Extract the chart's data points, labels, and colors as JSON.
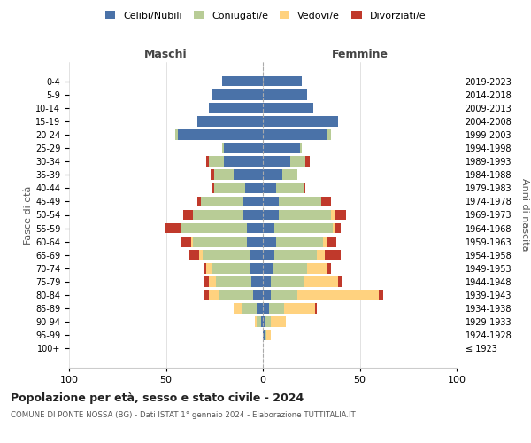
{
  "age_groups": [
    "100+",
    "95-99",
    "90-94",
    "85-89",
    "80-84",
    "75-79",
    "70-74",
    "65-69",
    "60-64",
    "55-59",
    "50-54",
    "45-49",
    "40-44",
    "35-39",
    "30-34",
    "25-29",
    "20-24",
    "15-19",
    "10-14",
    "5-9",
    "0-4"
  ],
  "birth_years": [
    "≤ 1923",
    "1924-1928",
    "1929-1933",
    "1934-1938",
    "1939-1943",
    "1944-1948",
    "1949-1953",
    "1954-1958",
    "1959-1963",
    "1964-1968",
    "1969-1973",
    "1974-1978",
    "1979-1983",
    "1984-1988",
    "1989-1993",
    "1994-1998",
    "1999-2003",
    "2004-2008",
    "2009-2013",
    "2014-2018",
    "2019-2023"
  ],
  "maschi": {
    "celibi": [
      0,
      0,
      1,
      3,
      5,
      6,
      7,
      7,
      8,
      8,
      10,
      10,
      9,
      15,
      20,
      20,
      44,
      34,
      28,
      26,
      21
    ],
    "coniugati": [
      0,
      0,
      2,
      8,
      18,
      18,
      19,
      24,
      28,
      34,
      26,
      22,
      16,
      10,
      8,
      1,
      1,
      0,
      0,
      0,
      0
    ],
    "vedovi": [
      0,
      0,
      1,
      4,
      5,
      4,
      3,
      2,
      1,
      0,
      0,
      0,
      0,
      0,
      0,
      0,
      0,
      0,
      0,
      0,
      0
    ],
    "divorziati": [
      0,
      0,
      0,
      0,
      2,
      2,
      1,
      5,
      5,
      8,
      5,
      2,
      1,
      2,
      1,
      0,
      0,
      0,
      0,
      0,
      0
    ]
  },
  "femmine": {
    "nubili": [
      0,
      1,
      1,
      3,
      4,
      4,
      5,
      6,
      7,
      6,
      8,
      8,
      7,
      10,
      14,
      19,
      33,
      39,
      26,
      23,
      20
    ],
    "coniugate": [
      0,
      1,
      3,
      8,
      14,
      17,
      18,
      22,
      24,
      30,
      27,
      22,
      14,
      8,
      8,
      1,
      2,
      0,
      0,
      0,
      0
    ],
    "vedove": [
      0,
      2,
      8,
      16,
      42,
      18,
      10,
      4,
      2,
      1,
      2,
      0,
      0,
      0,
      0,
      0,
      0,
      0,
      0,
      0,
      0
    ],
    "divorziate": [
      0,
      0,
      0,
      1,
      2,
      2,
      2,
      8,
      5,
      3,
      6,
      5,
      1,
      0,
      2,
      0,
      0,
      0,
      0,
      0,
      0
    ]
  },
  "colors": {
    "celibi": "#4a72a8",
    "coniugati": "#b8cc96",
    "vedovi": "#ffd27f",
    "divorziati": "#c0392b"
  },
  "xlim": 100,
  "title": "Popolazione per età, sesso e stato civile - 2024",
  "subtitle": "COMUNE DI PONTE NOSSA (BG) - Dati ISTAT 1° gennaio 2024 - Elaborazione TUTTITALIA.IT",
  "ylabel_left": "Fasce di età",
  "ylabel_right": "Anni di nascita",
  "xlabel_left": "Maschi",
  "xlabel_right": "Femmine"
}
